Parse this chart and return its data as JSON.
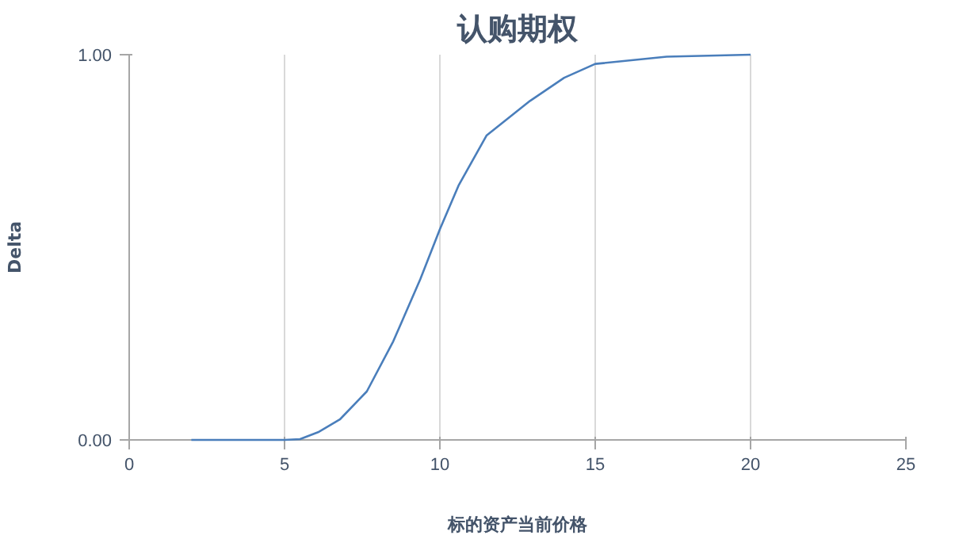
{
  "chart_data": {
    "type": "line",
    "title": "认购期权",
    "xlabel": "标的资产当前价格",
    "ylabel": "Delta",
    "x": [
      2,
      3,
      4,
      5,
      5.5,
      6.08,
      6.78,
      7.65,
      8.5,
      9.37,
      10,
      10.6,
      11.5,
      12.9,
      14,
      15,
      17.3,
      20
    ],
    "series": [
      {
        "color": "#4a7ebb",
        "values": [
          0,
          0,
          0,
          0,
          0.002,
          0.02,
          0.053,
          0.126,
          0.256,
          0.417,
          0.547,
          0.66,
          0.79,
          0.88,
          0.94,
          0.976,
          0.995,
          1.0
        ]
      }
    ],
    "xlim": [
      0,
      25
    ],
    "xticks": [
      0,
      5,
      10,
      15,
      20,
      25
    ],
    "ylim": [
      0,
      1
    ],
    "yticks": [
      {
        "value": 0,
        "label": "0.00"
      },
      {
        "value": 1,
        "label": "1.00"
      }
    ],
    "grid": true,
    "marker": "none",
    "line_style": "solid"
  }
}
